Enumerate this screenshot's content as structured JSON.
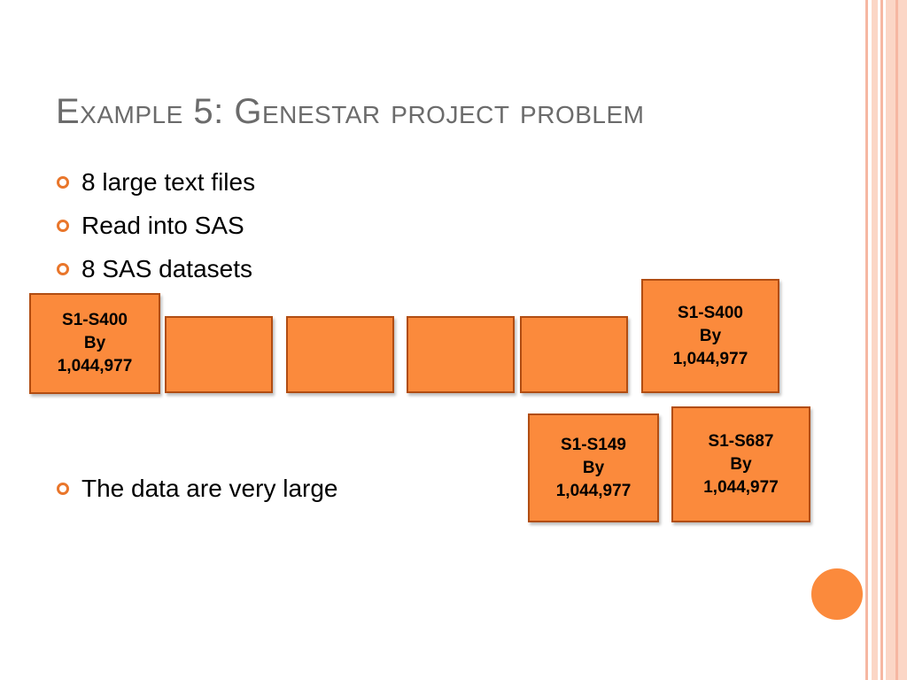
{
  "slide": {
    "title": "Example 5: Genestar project problem",
    "bullets": [
      "8 large text files",
      "Read into SAS",
      "8 SAS datasets",
      "The data are very large"
    ],
    "boxes": [
      {
        "line1": "S1-S400",
        "line2": "By",
        "line3": "1,044,977"
      },
      {
        "line1": "",
        "line2": "",
        "line3": ""
      },
      {
        "line1": "",
        "line2": "",
        "line3": ""
      },
      {
        "line1": "",
        "line2": "",
        "line3": ""
      },
      {
        "line1": "",
        "line2": "",
        "line3": ""
      },
      {
        "line1": "S1-S400",
        "line2": "By",
        "line3": "1,044,977"
      },
      {
        "line1": "S1-S149",
        "line2": "By",
        "line3": "1,044,977"
      },
      {
        "line1": "S1-S687",
        "line2": "By",
        "line3": "1,044,977"
      }
    ],
    "colors": {
      "box_fill": "#fb8a3c",
      "box_border": "#b14d12",
      "bullet_marker": "#e9762b",
      "title": "#6b6b6b",
      "stripe": "#fbd6c6"
    }
  }
}
